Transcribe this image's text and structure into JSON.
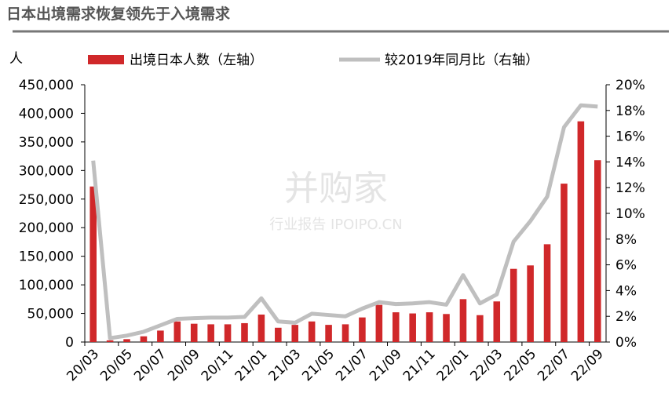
{
  "chart_data": {
    "type": "bar-line",
    "title": "日本出境需求恢复领先于入境需求",
    "y_unit": "人",
    "watermark": {
      "brand": "并购家",
      "sub": "行业报告 IPOIPO.CN"
    },
    "categories": [
      "20/03",
      null,
      "20/05",
      null,
      "20/07",
      null,
      "20/09",
      null,
      "20/11",
      null,
      "21/01",
      null,
      "21/03",
      null,
      "21/05",
      null,
      "21/07",
      null,
      "21/09",
      null,
      "21/11",
      null,
      "22/01",
      null,
      "22/03",
      null,
      "22/05",
      null,
      "22/07",
      null,
      "22/09"
    ],
    "series": [
      {
        "name": "出境日本人数（左轴）",
        "color": "#d0282a",
        "axis": "y",
        "values": [
          272000,
          3000,
          5000,
          10000,
          20000,
          36000,
          32000,
          31000,
          31000,
          33000,
          48000,
          25000,
          30000,
          36000,
          30000,
          31000,
          43000,
          65000,
          52000,
          50000,
          52000,
          49000,
          75000,
          47000,
          71000,
          128000,
          134000,
          171000,
          277000,
          386000,
          318000
        ]
      },
      {
        "name": "较2019年同月比（右轴）",
        "color": "#bfbfbf",
        "axis": "y2",
        "values": [
          14.1,
          0.3,
          0.5,
          0.8,
          1.3,
          1.8,
          1.85,
          1.9,
          1.9,
          1.95,
          3.4,
          1.6,
          1.5,
          2.2,
          2.1,
          2.0,
          2.6,
          3.1,
          2.95,
          3.0,
          3.1,
          2.9,
          5.2,
          3.0,
          3.7,
          7.8,
          9.4,
          11.3,
          16.7,
          18.4,
          18.3
        ]
      }
    ],
    "ylim": [
      0,
      450000
    ],
    "yticks": [
      0,
      {
        "value": 50000,
        "label": "50,000"
      },
      {
        "value": 100000,
        "label": "100,000"
      },
      {
        "value": 150000,
        "label": "150,000"
      },
      {
        "value": 200000,
        "label": "200,000"
      },
      {
        "value": 250000,
        "label": "250,000"
      },
      {
        "value": 300000,
        "label": "300,000"
      },
      {
        "value": 350000,
        "label": "350,000"
      },
      {
        "value": 400000,
        "label": "400,000"
      },
      {
        "value": 450000,
        "label": "450,000"
      }
    ],
    "y2lim": [
      0,
      20
    ],
    "y2ticks": [
      {
        "value": 0,
        "label": "0%"
      },
      {
        "value": 2,
        "label": "2%"
      },
      {
        "value": 4,
        "label": "4%"
      },
      {
        "value": 6,
        "label": "6%"
      },
      {
        "value": 8,
        "label": "8%"
      },
      {
        "value": 10,
        "label": "10%"
      },
      {
        "value": 12,
        "label": "12%"
      },
      {
        "value": 14,
        "label": "14%"
      },
      {
        "value": 16,
        "label": "16%"
      },
      {
        "value": 18,
        "label": "18%"
      },
      {
        "value": 20,
        "label": "20%"
      }
    ],
    "grid": false
  }
}
